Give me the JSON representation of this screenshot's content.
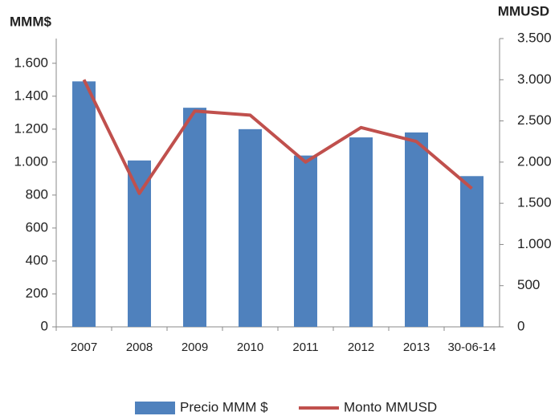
{
  "chart_data": {
    "type": "bar_line",
    "y_label": "MMM$",
    "y2_label": "MMUSD",
    "categories": [
      "2007",
      "2008",
      "2009",
      "2010",
      "2011",
      "2012",
      "2013",
      "30-06-14"
    ],
    "series": [
      {
        "name": "Precio MMM $",
        "color": "#4f81bd",
        "type": "bar",
        "values": [
          1490,
          1010,
          1330,
          1200,
          1040,
          1150,
          1180,
          915
        ]
      },
      {
        "name": "Monto MMUSD",
        "color": "#c0504d",
        "type": "line",
        "axis": "y2",
        "values": [
          3000,
          1620,
          2620,
          2570,
          2000,
          2420,
          2250,
          1680
        ]
      }
    ],
    "ylim": [
      0,
      1750
    ],
    "yticks": [
      0,
      200,
      400,
      600,
      {
        "value": 800,
        "label": "800"
      },
      {
        "value": 1000,
        "label": "1.000"
      },
      {
        "value": 1200,
        "label": "1.200"
      },
      {
        "value": 1400,
        "label": "1.400"
      },
      {
        "value": 1600,
        "label": "1.600"
      }
    ],
    "y2lim": [
      0,
      3500
    ],
    "y2ticks": [
      0,
      500,
      {
        "value": 1000,
        "label": "1.000"
      },
      {
        "value": 1500,
        "label": "1.500"
      },
      {
        "value": 2000,
        "label": "2.000"
      },
      {
        "value": 2500,
        "label": "2.500"
      },
      {
        "value": 3000,
        "label": "3.000"
      },
      {
        "value": 3500,
        "label": "3.500"
      }
    ],
    "legend": "bottom"
  }
}
